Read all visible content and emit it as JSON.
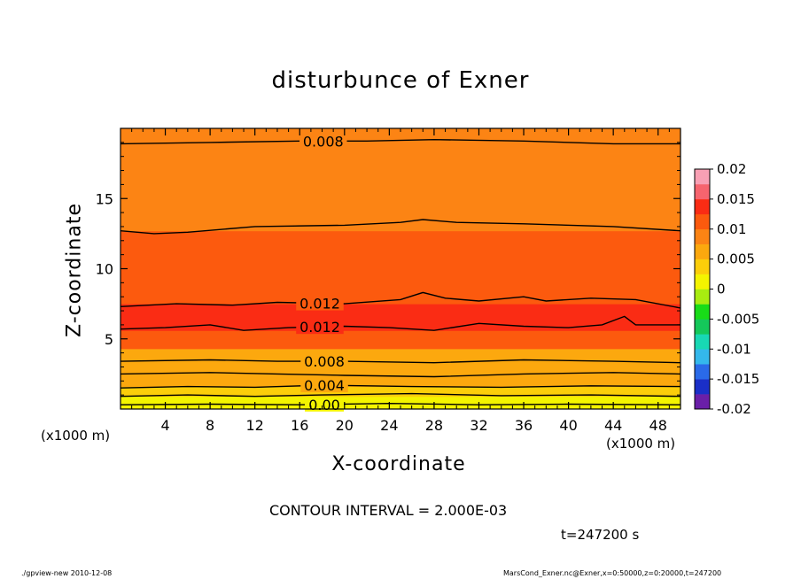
{
  "title": "disturbunce of Exner",
  "footer": {
    "left": "./gpview-new   2010-12-08",
    "right": "MarsCond_Exner.nc@Exner,x=0:50000,z=0:20000,t=247200"
  },
  "interval_text": "CONTOUR INTERVAL = 2.000E-03",
  "time_text": "t=247200 s",
  "colors": {
    "levels": [
      "#6a1fa8",
      "#1a2fc8",
      "#2a6ae8",
      "#34b8ec",
      "#18d8b4",
      "#14c85a",
      "#18dc18",
      "#a8ec10",
      "#f4f400",
      "#fcce0a",
      "#fca80e",
      "#fc8414",
      "#fc5a0e",
      "#fa2c14",
      "#f6646e",
      "#f8a0b4"
    ],
    "line": "#000000"
  },
  "chart_data": {
    "type": "contour",
    "title": "disturbunce of Exner",
    "xlabel": "X-coordinate",
    "ylabel": "Z-coordinate",
    "x_unit": "(x1000 m)",
    "y_unit": "(x1000 m)",
    "xlim": [
      0,
      50
    ],
    "ylim": [
      0,
      20
    ],
    "x_ticks": [
      "4",
      "8",
      "12",
      "16",
      "20",
      "24",
      "28",
      "32",
      "36",
      "40",
      "44",
      "48"
    ],
    "y_ticks": [
      "5",
      "10",
      "15"
    ],
    "x_tick_values": [
      4,
      8,
      12,
      16,
      20,
      24,
      28,
      32,
      36,
      40,
      44,
      48
    ],
    "y_tick_values": [
      5,
      10,
      15
    ],
    "contour_interval": 0.002,
    "time": 247200,
    "colorbar": {
      "min": -0.02,
      "max": 0.02,
      "step": 0.0025,
      "labels": [
        "0.02",
        "0.015",
        "0.01",
        "0.005",
        "0",
        "-0.005",
        "-0.01",
        "-0.015",
        "-0.02"
      ],
      "label_values": [
        0.02,
        0.015,
        0.01,
        0.005,
        0,
        -0.005,
        -0.01,
        -0.015,
        -0.02
      ]
    },
    "bands": [
      {
        "z_bottom": 0.0,
        "z_top": 0.3,
        "value": 0.0
      },
      {
        "z_bottom": 0.3,
        "z_top": 0.9,
        "value": 0.0015
      },
      {
        "z_bottom": 0.9,
        "z_top": 1.6,
        "value": 0.0035
      },
      {
        "z_bottom": 1.6,
        "z_top": 2.6,
        "value": 0.0055
      },
      {
        "z_bottom": 2.6,
        "z_top": 4.3,
        "value": 0.0065
      },
      {
        "z_bottom": 4.3,
        "z_top": 5.6,
        "value": 0.0105
      },
      {
        "z_bottom": 5.6,
        "z_top": 7.5,
        "value": 0.013
      },
      {
        "z_bottom": 7.5,
        "z_top": 9.7,
        "value": 0.0115
      },
      {
        "z_bottom": 9.7,
        "z_top": 12.7,
        "value": 0.0105
      },
      {
        "z_bottom": 12.7,
        "z_top": 15.9,
        "value": 0.009
      },
      {
        "z_bottom": 15.9,
        "z_top": 18.5,
        "value": 0.0082
      },
      {
        "z_bottom": 18.5,
        "z_top": 20.0,
        "value": 0.0076
      }
    ],
    "contours": [
      {
        "level": 0.0,
        "label": "0.00",
        "label_x": 18.2,
        "points": [
          [
            0,
            0.3
          ],
          [
            8,
            0.35
          ],
          [
            16,
            0.3
          ],
          [
            24,
            0.4
          ],
          [
            32,
            0.3
          ],
          [
            40,
            0.35
          ],
          [
            50,
            0.3
          ]
        ]
      },
      {
        "level": 0.002,
        "label": "",
        "points": [
          [
            0,
            0.9
          ],
          [
            6,
            1.0
          ],
          [
            12,
            0.9
          ],
          [
            18,
            1.0
          ],
          [
            26,
            1.1
          ],
          [
            34,
            0.95
          ],
          [
            42,
            1.0
          ],
          [
            50,
            0.9
          ]
        ]
      },
      {
        "level": 0.004,
        "label": "0.004",
        "label_x": 18.2,
        "points": [
          [
            0,
            1.5
          ],
          [
            6,
            1.6
          ],
          [
            12,
            1.55
          ],
          [
            18,
            1.7
          ],
          [
            26,
            1.6
          ],
          [
            34,
            1.55
          ],
          [
            42,
            1.65
          ],
          [
            50,
            1.6
          ]
        ]
      },
      {
        "level": 0.006,
        "label": "",
        "points": [
          [
            0,
            2.5
          ],
          [
            8,
            2.6
          ],
          [
            14,
            2.5
          ],
          [
            20,
            2.4
          ],
          [
            28,
            2.3
          ],
          [
            36,
            2.5
          ],
          [
            44,
            2.6
          ],
          [
            50,
            2.5
          ]
        ]
      },
      {
        "level": 0.008,
        "label": "0.008",
        "label_x": 18.2,
        "points": [
          [
            0,
            3.4
          ],
          [
            8,
            3.5
          ],
          [
            14,
            3.4
          ],
          [
            20,
            3.4
          ],
          [
            28,
            3.3
          ],
          [
            36,
            3.5
          ],
          [
            44,
            3.4
          ],
          [
            50,
            3.3
          ]
        ]
      },
      {
        "level": 0.012,
        "label": "0.012",
        "label_x": 17.8,
        "points": [
          [
            0,
            5.7
          ],
          [
            4,
            5.8
          ],
          [
            8,
            6.0
          ],
          [
            11,
            5.6
          ],
          [
            15,
            5.8
          ],
          [
            20,
            5.9
          ],
          [
            24,
            5.8
          ],
          [
            28,
            5.6
          ],
          [
            32,
            6.1
          ],
          [
            36,
            5.9
          ],
          [
            40,
            5.8
          ],
          [
            43,
            6.0
          ],
          [
            45,
            6.6
          ],
          [
            46,
            6.0
          ],
          [
            50,
            6.0
          ]
        ]
      },
      {
        "level": 0.012,
        "label": "0.012",
        "label_x": 17.8,
        "points": [
          [
            0,
            7.3
          ],
          [
            5,
            7.5
          ],
          [
            10,
            7.4
          ],
          [
            14,
            7.6
          ],
          [
            20,
            7.5
          ],
          [
            25,
            7.8
          ],
          [
            27,
            8.3
          ],
          [
            29,
            7.9
          ],
          [
            32,
            7.7
          ],
          [
            36,
            8.0
          ],
          [
            38,
            7.7
          ],
          [
            42,
            7.9
          ],
          [
            46,
            7.8
          ],
          [
            50,
            7.2
          ]
        ]
      },
      {
        "level": 0.01,
        "label": "",
        "points": [
          [
            0,
            12.7
          ],
          [
            3,
            12.5
          ],
          [
            6,
            12.6
          ],
          [
            12,
            13.0
          ],
          [
            20,
            13.1
          ],
          [
            25,
            13.3
          ],
          [
            27,
            13.5
          ],
          [
            30,
            13.3
          ],
          [
            36,
            13.2
          ],
          [
            44,
            13.0
          ],
          [
            50,
            12.7
          ]
        ]
      },
      {
        "level": 0.008,
        "label": "0.008",
        "label_x": 18.1,
        "points": [
          [
            0,
            18.9
          ],
          [
            8,
            19.0
          ],
          [
            16,
            19.1
          ],
          [
            22,
            19.1
          ],
          [
            28,
            19.2
          ],
          [
            36,
            19.1
          ],
          [
            44,
            18.9
          ],
          [
            50,
            18.9
          ]
        ]
      }
    ]
  }
}
